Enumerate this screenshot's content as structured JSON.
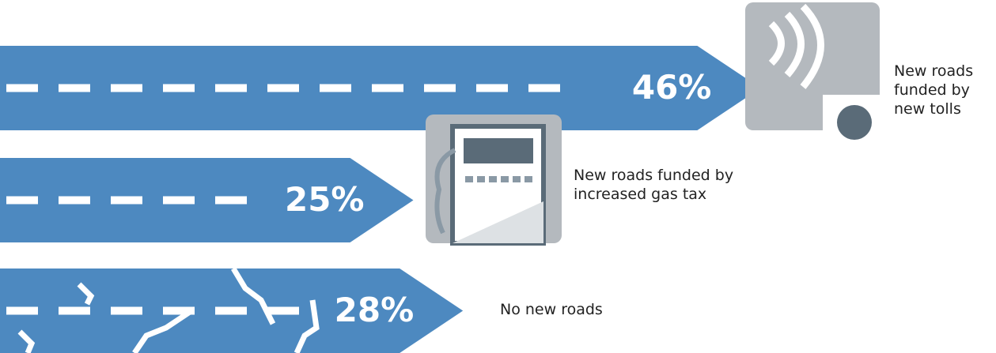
{
  "chart_data": {
    "type": "bar",
    "categories": [
      "New roads funded by new tolls",
      "New roads funded by increased gas tax",
      "No new roads"
    ],
    "values": [
      46,
      25,
      28
    ],
    "value_labels": [
      "46%",
      "25%",
      "28%"
    ],
    "color": "#4d89c0"
  }
}
